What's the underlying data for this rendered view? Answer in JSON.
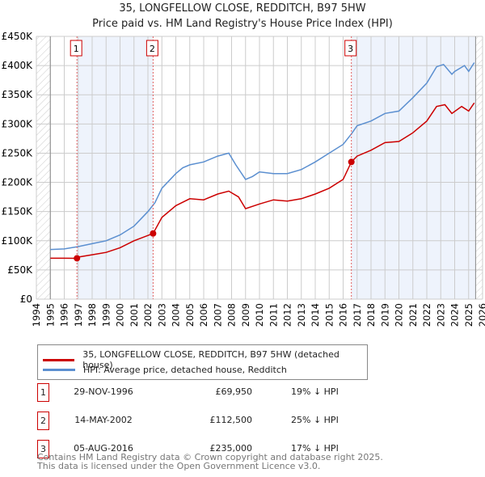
{
  "title": "35, LONGFELLOW CLOSE, REDDITCH, B97 5HW",
  "subtitle": "Price paid vs. HM Land Registry's House Price Index (HPI)",
  "chart_data": {
    "type": "line",
    "title": "35, LONGFELLOW CLOSE, REDDITCH, B97 5HW",
    "subtitle": "Price paid vs. HM Land Registry's House Price Index (HPI)",
    "xlim": [
      1994,
      2026
    ],
    "ylim": [
      0,
      450000
    ],
    "x_ticks": [
      "1994",
      "1995",
      "1996",
      "1997",
      "1998",
      "1999",
      "2000",
      "2001",
      "2002",
      "2003",
      "2004",
      "2005",
      "2006",
      "2007",
      "2008",
      "2009",
      "2010",
      "2011",
      "2012",
      "2013",
      "2014",
      "2015",
      "2016",
      "2017",
      "2018",
      "2019",
      "2020",
      "2021",
      "2022",
      "2023",
      "2024",
      "2025",
      "2026"
    ],
    "y_ticks": [
      {
        "v": 0,
        "label": "£0"
      },
      {
        "v": 50000,
        "label": "£50K"
      },
      {
        "v": 100000,
        "label": "£100K"
      },
      {
        "v": 150000,
        "label": "£150K"
      },
      {
        "v": 200000,
        "label": "£200K"
      },
      {
        "v": 250000,
        "label": "£250K"
      },
      {
        "v": 300000,
        "label": "£300K"
      },
      {
        "v": 350000,
        "label": "£350K"
      },
      {
        "v": 400000,
        "label": "£400K"
      },
      {
        "v": 450000,
        "label": "£450K"
      }
    ],
    "grid": true,
    "series": [
      {
        "name": "35, LONGFELLOW CLOSE, REDDITCH, B97 5HW (detached house)",
        "color": "#cc0000",
        "x": [
          1995,
          1996,
          1996.91,
          1997,
          1998,
          1999,
          2000,
          2001,
          2002.37,
          2003,
          2004,
          2005,
          2006,
          2007,
          2007.8,
          2008.5,
          2009,
          2010,
          2011,
          2012,
          2013,
          2014,
          2015,
          2016,
          2016.59,
          2017,
          2018,
          2019,
          2020,
          2021,
          2022,
          2022.7,
          2023.3,
          2023.8,
          2024.5,
          2025,
          2025.4
        ],
        "y": [
          70000,
          70000,
          69950,
          72000,
          76000,
          80000,
          88000,
          100000,
          112500,
          140000,
          160000,
          172000,
          170000,
          180000,
          185000,
          175000,
          155000,
          163000,
          170000,
          168000,
          172000,
          180000,
          190000,
          205000,
          235000,
          245000,
          255000,
          268000,
          270000,
          285000,
          305000,
          330000,
          333000,
          318000,
          330000,
          322000,
          336000
        ]
      },
      {
        "name": "HPI: Average price, detached house, Redditch",
        "color": "#5b8fd0",
        "x": [
          1995,
          1996,
          1997,
          1998,
          1999,
          2000,
          2001,
          2002,
          2002.5,
          2003,
          2004,
          2004.5,
          2005,
          2006,
          2007,
          2007.8,
          2008.3,
          2009,
          2009.5,
          2010,
          2011,
          2012,
          2013,
          2014,
          2015,
          2016,
          2016.6,
          2017,
          2018,
          2019,
          2020,
          2021,
          2022,
          2022.7,
          2023.2,
          2023.8,
          2024,
          2024.7,
          2025,
          2025.4
        ],
        "y": [
          85000,
          86000,
          90000,
          95000,
          100000,
          110000,
          125000,
          150000,
          165000,
          190000,
          215000,
          225000,
          230000,
          235000,
          245000,
          250000,
          230000,
          205000,
          210000,
          218000,
          215000,
          215000,
          222000,
          235000,
          250000,
          265000,
          283000,
          297000,
          305000,
          318000,
          322000,
          345000,
          370000,
          398000,
          402000,
          385000,
          390000,
          400000,
          390000,
          405000
        ]
      }
    ],
    "markers": [
      {
        "label": "1",
        "x": 1996.91,
        "y": 69950
      },
      {
        "label": "2",
        "x": 2002.37,
        "y": 112500
      },
      {
        "label": "3",
        "x": 2016.59,
        "y": 235000
      }
    ],
    "legend_position": "below"
  },
  "legend": {
    "items": [
      "35, LONGFELLOW CLOSE, REDDITCH, B97 5HW (detached house)",
      "HPI: Average price, detached house, Redditch"
    ]
  },
  "transactions": [
    {
      "num": "1",
      "date": "29-NOV-1996",
      "price": "£69,950",
      "hpi": "19% ↓ HPI"
    },
    {
      "num": "2",
      "date": "14-MAY-2002",
      "price": "£112,500",
      "hpi": "25% ↓ HPI"
    },
    {
      "num": "3",
      "date": "05-AUG-2016",
      "price": "£235,000",
      "hpi": "17% ↓ HPI"
    }
  ],
  "footer": [
    "Contains HM Land Registry data © Crown copyright and database right 2025.",
    "This data is licensed under the Open Government Licence v3.0."
  ]
}
